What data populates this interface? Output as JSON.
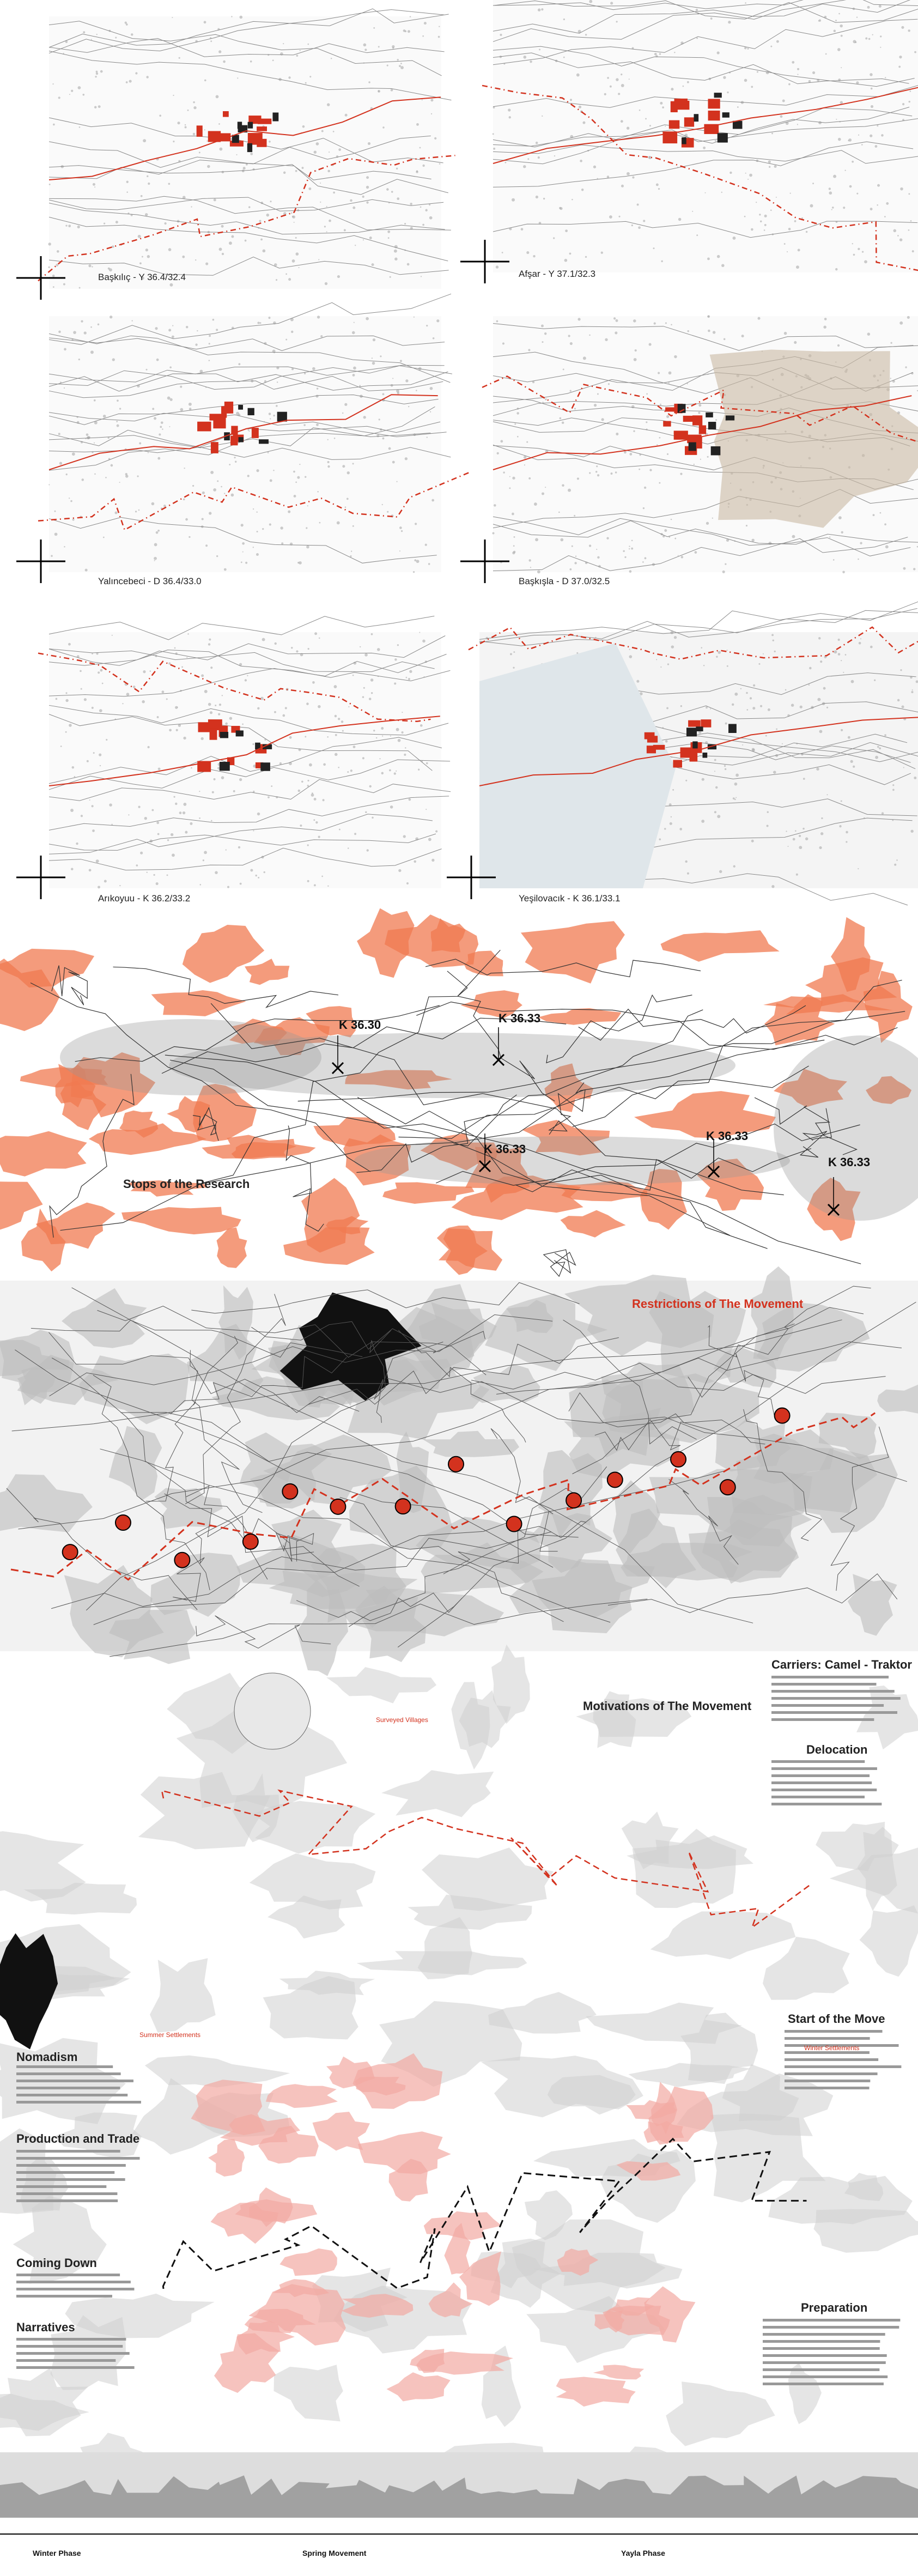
{
  "panels": [
    {
      "label": "Başkılıç - Y 36.4/32.4"
    },
    {
      "label": "Afşar - Y 37.1/32.3"
    },
    {
      "label": "Yalıncebeci - D 36.4/33.0"
    },
    {
      "label": "Başkışla - D 37.0/32.5"
    },
    {
      "label": "Arıkoyuu - K 36.2/33.2"
    },
    {
      "label": "Yeşilovacık - K 36.1/33.1"
    }
  ],
  "stops": {
    "title": "Stops of the Research",
    "markers": [
      {
        "label": "K 36.30"
      },
      {
        "label": "K 36.33"
      },
      {
        "label": "K 36.33"
      },
      {
        "label": "K 36.33"
      },
      {
        "label": "K 36.33"
      }
    ]
  },
  "restrictions": {
    "title": "Restrictions of The Movement"
  },
  "motivations": {
    "title": "Motivations of The Movement",
    "notes": [
      "Surveyed Villages",
      "Summer Settlements",
      "Winter Settlements"
    ]
  },
  "sidebar": {
    "right": [
      "Carriers: Camel - Traktor",
      "Delocation",
      "Start of the Move",
      "Preparation"
    ],
    "left": [
      "Production and Trade",
      "Nomadism",
      "Coming Down",
      "Narratives"
    ]
  },
  "timeline": [
    "Winter Phase",
    "Spring Movement",
    "Yayla Phase"
  ]
}
